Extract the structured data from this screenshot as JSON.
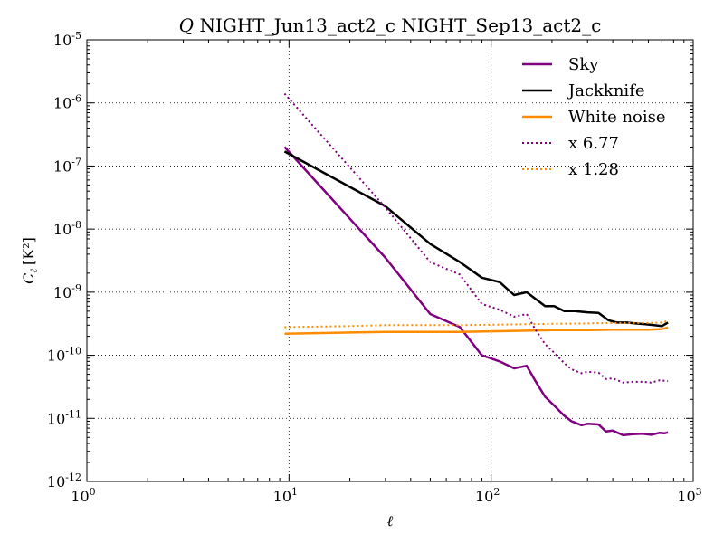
{
  "chart_data": {
    "type": "line",
    "title_symbol": "Q",
    "title_text": "NIGHT_Jun13_act2_c NIGHT_Sep13_act2_c",
    "xlabel": "ℓ",
    "ylabel_symbol": "C",
    "ylabel_sub": "ℓ",
    "ylabel_unit": "[K²]",
    "xscale": "log",
    "yscale": "log",
    "xlim": [
      1,
      1000
    ],
    "ylim": [
      1e-12,
      1e-05
    ],
    "grid": true,
    "legend_position": "top-right",
    "x_ticks": [
      {
        "value": 1,
        "base": "10",
        "exp": "0"
      },
      {
        "value": 10,
        "base": "10",
        "exp": "1"
      },
      {
        "value": 100,
        "base": "10",
        "exp": "2"
      },
      {
        "value": 1000,
        "base": "10",
        "exp": "3"
      }
    ],
    "y_ticks": [
      {
        "value": 1e-12,
        "base": "10",
        "exp": "-12"
      },
      {
        "value": 1e-11,
        "base": "10",
        "exp": "-11"
      },
      {
        "value": 1e-10,
        "base": "10",
        "exp": "-10"
      },
      {
        "value": 1e-09,
        "base": "10",
        "exp": "-9"
      },
      {
        "value": 1e-08,
        "base": "10",
        "exp": "-8"
      },
      {
        "value": 1e-07,
        "base": "10",
        "exp": "-7"
      },
      {
        "value": 1e-06,
        "base": "10",
        "exp": "-6"
      },
      {
        "value": 1e-05,
        "base": "10",
        "exp": "-5"
      }
    ],
    "series": [
      {
        "name": "Sky",
        "color": "#800080",
        "style": "solid",
        "points": [
          [
            9.5,
            2e-07
          ],
          [
            30,
            3.5e-09
          ],
          [
            50,
            4.5e-10
          ],
          [
            70,
            2.8e-10
          ],
          [
            90,
            1e-10
          ],
          [
            110,
            8e-11
          ],
          [
            130,
            6.2e-11
          ],
          [
            150,
            6.8e-11
          ],
          [
            165,
            4e-11
          ],
          [
            185,
            2.2e-11
          ],
          [
            205,
            1.6e-11
          ],
          [
            230,
            1.1e-11
          ],
          [
            250,
            9e-12
          ],
          [
            280,
            7.8e-12
          ],
          [
            300,
            8.2e-12
          ],
          [
            340,
            8e-12
          ],
          [
            370,
            6.2e-12
          ],
          [
            400,
            6.4e-12
          ],
          [
            450,
            5.4e-12
          ],
          [
            500,
            5.6e-12
          ],
          [
            560,
            5.7e-12
          ],
          [
            620,
            5.5e-12
          ],
          [
            680,
            5.9e-12
          ],
          [
            720,
            5.8e-12
          ],
          [
            750,
            6e-12
          ]
        ]
      },
      {
        "name": "Jackknife",
        "color": "#000000",
        "style": "solid",
        "points": [
          [
            9.5,
            1.7e-07
          ],
          [
            30,
            2.3e-08
          ],
          [
            50,
            5.8e-09
          ],
          [
            70,
            3e-09
          ],
          [
            90,
            1.7e-09
          ],
          [
            110,
            1.45e-09
          ],
          [
            130,
            9e-10
          ],
          [
            150,
            1e-09
          ],
          [
            185,
            6e-10
          ],
          [
            205,
            6e-10
          ],
          [
            230,
            5e-10
          ],
          [
            260,
            5e-10
          ],
          [
            300,
            4.8e-10
          ],
          [
            340,
            4.7e-10
          ],
          [
            380,
            3.6e-10
          ],
          [
            420,
            3.3e-10
          ],
          [
            470,
            3.3e-10
          ],
          [
            520,
            3.2e-10
          ],
          [
            580,
            3.1e-10
          ],
          [
            640,
            3e-10
          ],
          [
            700,
            2.9e-10
          ],
          [
            750,
            3.3e-10
          ]
        ]
      },
      {
        "name": "White noise",
        "color": "#ff8c00",
        "style": "solid",
        "points": [
          [
            9.5,
            2.2e-10
          ],
          [
            20,
            2.3e-10
          ],
          [
            30,
            2.35e-10
          ],
          [
            50,
            2.35e-10
          ],
          [
            70,
            2.35e-10
          ],
          [
            100,
            2.4e-10
          ],
          [
            150,
            2.45e-10
          ],
          [
            200,
            2.5e-10
          ],
          [
            300,
            2.5e-10
          ],
          [
            400,
            2.55e-10
          ],
          [
            500,
            2.55e-10
          ],
          [
            600,
            2.55e-10
          ],
          [
            700,
            2.6e-10
          ],
          [
            750,
            2.75e-10
          ]
        ]
      },
      {
        "name": "x 6.77",
        "color": "#800080",
        "style": "dotted",
        "points": [
          [
            9.5,
            1.4e-06
          ],
          [
            30,
            2.2e-08
          ],
          [
            50,
            3e-09
          ],
          [
            70,
            1.9e-09
          ],
          [
            90,
            6.5e-10
          ],
          [
            110,
            5.3e-10
          ],
          [
            130,
            4.1e-10
          ],
          [
            150,
            4.5e-10
          ],
          [
            165,
            2.6e-10
          ],
          [
            185,
            1.5e-10
          ],
          [
            205,
            1.1e-10
          ],
          [
            230,
            7.5e-11
          ],
          [
            250,
            6e-11
          ],
          [
            280,
            5.2e-11
          ],
          [
            300,
            5.5e-11
          ],
          [
            340,
            5.3e-11
          ],
          [
            370,
            4.2e-11
          ],
          [
            400,
            4.3e-11
          ],
          [
            450,
            3.7e-11
          ],
          [
            500,
            3.8e-11
          ],
          [
            560,
            3.8e-11
          ],
          [
            620,
            3.7e-11
          ],
          [
            680,
            4e-11
          ],
          [
            750,
            3.9e-11
          ]
        ]
      },
      {
        "name": "x 1.28",
        "color": "#ff8c00",
        "style": "dotted",
        "points": [
          [
            9.5,
            2.8e-10
          ],
          [
            20,
            2.9e-10
          ],
          [
            30,
            3e-10
          ],
          [
            50,
            3e-10
          ],
          [
            70,
            3e-10
          ],
          [
            100,
            3.05e-10
          ],
          [
            150,
            3.1e-10
          ],
          [
            200,
            3.15e-10
          ],
          [
            300,
            3.2e-10
          ],
          [
            400,
            3.25e-10
          ],
          [
            500,
            3.25e-10
          ],
          [
            600,
            3.25e-10
          ],
          [
            700,
            3.3e-10
          ],
          [
            750,
            3.5e-10
          ]
        ]
      }
    ]
  }
}
